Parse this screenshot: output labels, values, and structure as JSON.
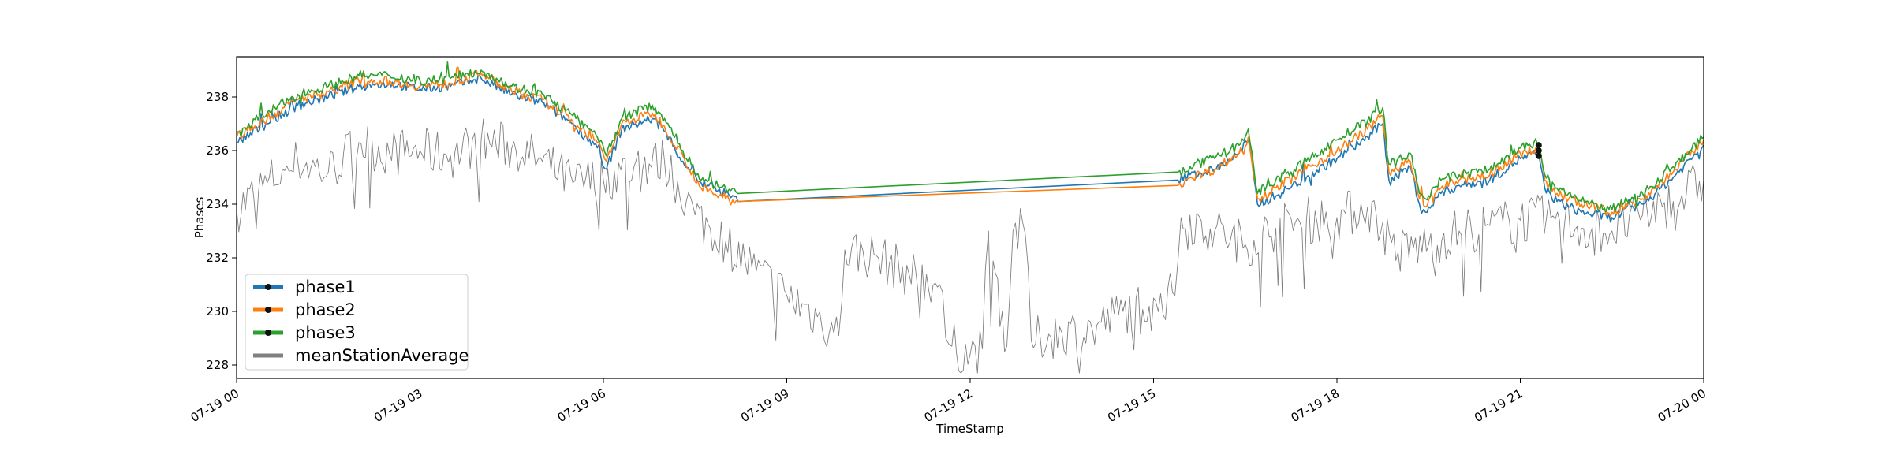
{
  "chart_data": {
    "type": "line",
    "title": "",
    "xlabel": "TimeStamp",
    "ylabel": "Phases",
    "xlim": [
      "2019-07-19 00:00",
      "2019-07-20 00:00"
    ],
    "ylim": [
      227.5,
      239.5
    ],
    "x_ticks": [
      "07-19 00",
      "07-19 03",
      "07-19 06",
      "07-19 09",
      "07-19 12",
      "07-19 15",
      "07-19 18",
      "07-19 21",
      "07-20 00"
    ],
    "x_tick_hours": [
      0,
      3,
      6,
      9,
      12,
      15,
      18,
      21,
      24
    ],
    "y_ticks": [
      228,
      230,
      232,
      234,
      236,
      238
    ],
    "grid": false,
    "legend_position": "lower-left",
    "series": [
      {
        "name": "phase1",
        "color": "#1f77b4",
        "x_hours": [
          0,
          0.5,
          1,
          1.5,
          2,
          2.5,
          3,
          3.5,
          4,
          4.5,
          5,
          5.5,
          5.9,
          6.05,
          6.3,
          6.8,
          7,
          7.3,
          7.6,
          8,
          8.2,
          15.4,
          15.6,
          16,
          16.4,
          16.55,
          16.7,
          17,
          17.5,
          18,
          18.5,
          18.75,
          18.85,
          19.2,
          19.35,
          19.45,
          19.7,
          20,
          20.5,
          21,
          21.3,
          21.4,
          21.6,
          22,
          22.5,
          23,
          23.5,
          24
        ],
        "values": [
          236.3,
          237,
          237.7,
          238,
          238.4,
          238.5,
          238.3,
          238.4,
          238.7,
          238.1,
          237.8,
          237,
          236.1,
          235.3,
          236.8,
          237.2,
          236.7,
          235.6,
          234.8,
          234.4,
          234.1,
          234.9,
          235.1,
          235.3,
          235.9,
          236.4,
          234.0,
          234.3,
          235.0,
          235.7,
          236.5,
          237.0,
          234.9,
          235.4,
          234.0,
          233.7,
          234.4,
          234.7,
          234.9,
          235.7,
          235.9,
          234.6,
          234.1,
          233.7,
          233.5,
          234.0,
          235.0,
          236.2
        ]
      },
      {
        "name": "phase2",
        "color": "#ff7f0e",
        "x_hours": [
          0,
          0.5,
          1,
          1.5,
          2,
          2.5,
          3,
          3.5,
          4,
          4.5,
          5,
          5.5,
          5.9,
          6.05,
          6.3,
          6.8,
          7,
          7.3,
          7.6,
          8,
          8.2,
          15.4,
          15.6,
          16,
          16.4,
          16.55,
          16.7,
          17,
          17.5,
          18,
          18.5,
          18.75,
          18.85,
          19.2,
          19.35,
          19.45,
          19.7,
          20,
          20.5,
          21,
          21.3,
          21.4,
          21.6,
          22,
          22.5,
          23,
          23.5,
          24
        ],
        "values": [
          236.5,
          237.2,
          237.9,
          238.2,
          238.6,
          238.6,
          238.4,
          238.5,
          238.9,
          238.2,
          237.9,
          237.1,
          236.3,
          235.6,
          237.0,
          237.4,
          236.9,
          235.8,
          234.6,
          234.2,
          234.1,
          234.7,
          235.0,
          235.3,
          235.9,
          236.5,
          234.2,
          234.6,
          235.3,
          236.0,
          236.8,
          237.3,
          235.2,
          235.6,
          234.2,
          233.9,
          234.6,
          234.9,
          235.1,
          235.9,
          236.1,
          234.9,
          234.4,
          234.0,
          233.7,
          234.2,
          235.2,
          236.4
        ]
      },
      {
        "name": "phase3",
        "color": "#2ca02c",
        "x_hours": [
          0,
          0.5,
          1,
          1.5,
          2,
          2.5,
          3,
          3.5,
          4,
          4.5,
          5,
          5.5,
          5.9,
          6.05,
          6.3,
          6.8,
          7,
          7.3,
          7.6,
          8,
          8.2,
          15.4,
          15.6,
          16,
          16.4,
          16.55,
          16.7,
          17,
          17.5,
          18,
          18.5,
          18.75,
          18.85,
          19.2,
          19.35,
          19.45,
          19.7,
          20,
          20.5,
          21,
          21.3,
          21.4,
          21.6,
          22,
          22.5,
          23,
          23.5,
          24
        ],
        "values": [
          236.7,
          237.4,
          238.1,
          238.4,
          238.8,
          238.8,
          238.6,
          238.7,
          239.0,
          238.4,
          238.1,
          237.3,
          236.5,
          235.8,
          237.2,
          237.7,
          237.2,
          236.0,
          234.9,
          234.6,
          234.4,
          235.2,
          235.4,
          235.7,
          236.2,
          236.8,
          234.4,
          234.9,
          235.6,
          236.4,
          237.1,
          237.6,
          235.5,
          235.9,
          234.4,
          234.2,
          234.9,
          235.1,
          235.3,
          236.1,
          236.3,
          235.1,
          234.6,
          234.1,
          233.8,
          234.4,
          235.4,
          236.5
        ]
      },
      {
        "name": "meanStationAverage",
        "color": "#808080",
        "x_hours": [
          0,
          0.5,
          1,
          1.5,
          2,
          2.5,
          3,
          3.5,
          4,
          4.5,
          5,
          5.5,
          6,
          6.5,
          7,
          7.5,
          8,
          8.5,
          9,
          9.5,
          9.85,
          9.95,
          10.5,
          11,
          11.5,
          11.6,
          11.7,
          12,
          12.2,
          12.3,
          12.6,
          12.7,
          12.9,
          13.0,
          13.5,
          14,
          14.5,
          15,
          15.35,
          15.45,
          16,
          16.5,
          17,
          17.5,
          18,
          18.5,
          19,
          19.5,
          20,
          20.5,
          21,
          21.5,
          22,
          22.5,
          23,
          23.5,
          24
        ],
        "values": [
          233.8,
          234.8,
          235.6,
          235.2,
          236.3,
          235.9,
          236.0,
          235.8,
          236.4,
          236.1,
          235.6,
          234.8,
          234.9,
          235.4,
          235.6,
          233.6,
          232.6,
          231.5,
          230.6,
          229.8,
          229.1,
          232.3,
          232.0,
          231.4,
          231.0,
          229.0,
          228.7,
          228.4,
          228.6,
          233.0,
          228.7,
          233.0,
          232.9,
          228.9,
          229.2,
          229.3,
          230.0,
          230.5,
          230.6,
          233.5,
          233.0,
          232.5,
          233.1,
          233.4,
          233.5,
          233.9,
          232.2,
          232.5,
          233.0,
          233.2,
          233.4,
          233.5,
          233.1,
          233.0,
          233.6,
          234.1,
          234.9
        ]
      }
    ],
    "markers": [
      {
        "x_hours": 21.3,
        "values": [
          235.8,
          236.0,
          236.2
        ]
      }
    ]
  }
}
